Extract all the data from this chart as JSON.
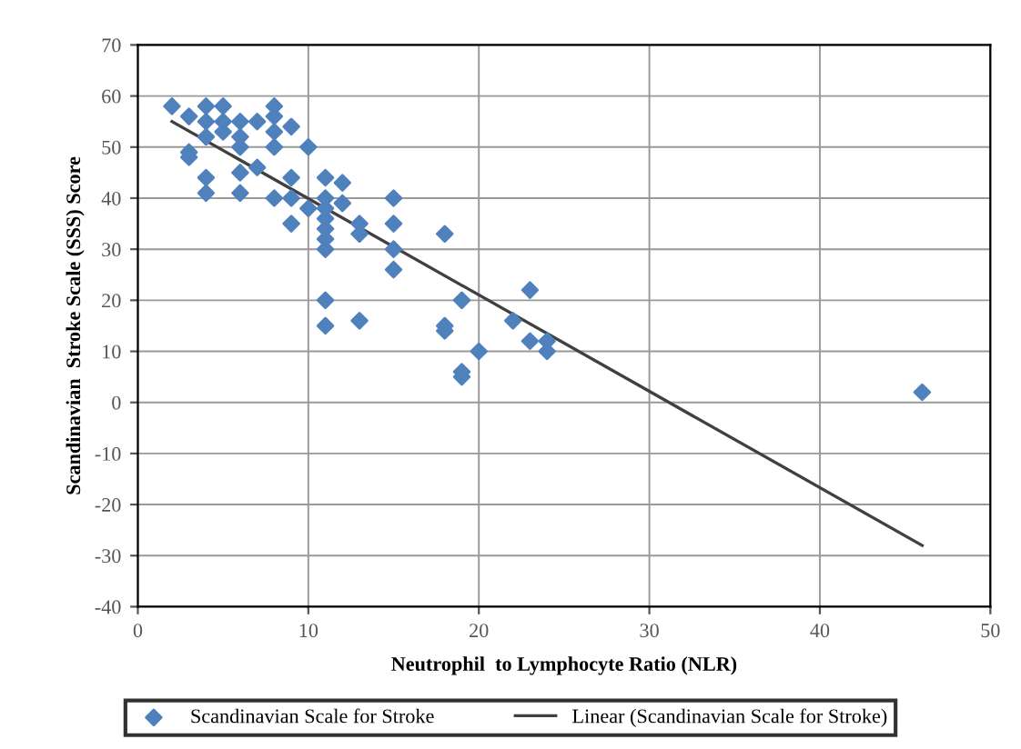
{
  "chart_data": {
    "type": "scatter",
    "xlabel": "Neutrophil  to Lymphocyte Ratio (NLR)",
    "ylabel": "Scandinavian  Stroke Scale (SSS) Score",
    "xlim": [
      0,
      50
    ],
    "xticks": [
      0,
      10,
      20,
      30,
      40,
      50
    ],
    "ylim": [
      -40,
      70
    ],
    "yticks": [
      -40,
      -30,
      -20,
      -10,
      0,
      10,
      20,
      30,
      40,
      50,
      60,
      70
    ],
    "grid": true,
    "legend": "bottom",
    "series": [
      {
        "name": "Scandinavian Scale for Stroke",
        "marker": "diamond",
        "color": "#4f81bd",
        "x": [
          2,
          3,
          4,
          4,
          4,
          3,
          3,
          4,
          4,
          5,
          5,
          5,
          6,
          6,
          6,
          6,
          6,
          7,
          7,
          8,
          8,
          8,
          8,
          8,
          9,
          9,
          9,
          9,
          10,
          10,
          11,
          11,
          11,
          11,
          11,
          11,
          11,
          11,
          11,
          12,
          12,
          13,
          13,
          13,
          15,
          15,
          15,
          15,
          18,
          18,
          18,
          19,
          19,
          19,
          20,
          22,
          23,
          23,
          24,
          24,
          46
        ],
        "values": [
          58,
          56,
          58,
          55,
          52,
          49,
          48,
          44,
          41,
          58,
          55,
          53,
          55,
          52,
          50,
          45,
          41,
          55,
          46,
          58,
          56,
          53,
          50,
          40,
          54,
          44,
          40,
          35,
          50,
          38,
          44,
          40,
          38,
          36,
          34,
          32,
          30,
          20,
          15,
          43,
          39,
          35,
          33,
          16,
          40,
          35,
          30,
          26,
          33,
          15,
          14,
          20,
          6,
          5,
          10,
          16,
          22,
          12,
          12,
          10,
          2
        ]
      },
      {
        "name": "Linear (Scandinavian Scale for Stroke)",
        "type": "line",
        "color": "#404040",
        "x": [
          2,
          46
        ],
        "values": [
          55,
          -28
        ]
      }
    ]
  }
}
